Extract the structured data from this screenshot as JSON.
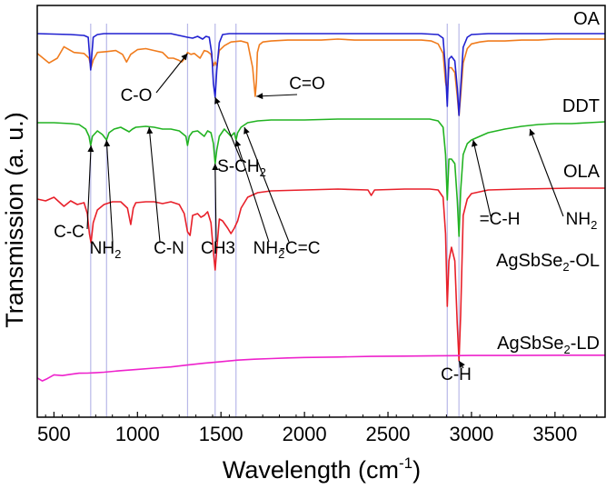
{
  "chart_data": {
    "type": "line",
    "xlabel": "Wavelength (cm",
    "xlabel_sup": "-1",
    "xlabel_close": ")",
    "ylabel": "Transmission (a. u.)",
    "xlim": [
      400,
      3800
    ],
    "x_ticks": [
      500,
      1000,
      1500,
      2000,
      2500,
      3000,
      3500
    ],
    "y_ticks": "none",
    "grid": false,
    "legend": "per-series labels on right side",
    "vertical_reference_lines": [
      720,
      815,
      1300,
      1465,
      1590,
      2855,
      2925
    ],
    "vertical_line_color": "#b8b8e8",
    "series": [
      {
        "name": "OA",
        "color": "#f07c1e",
        "x": [
          400,
          470,
          520,
          560,
          620,
          680,
          710,
          722,
          735,
          760,
          820,
          870,
          910,
          935,
          960,
          1000,
          1050,
          1100,
          1150,
          1185,
          1215,
          1245,
          1265,
          1285,
          1300,
          1320,
          1340,
          1375,
          1400,
          1420,
          1440,
          1455,
          1465,
          1475,
          1490,
          1520,
          1560,
          1620,
          1660,
          1690,
          1705,
          1712,
          1718,
          1730,
          1750,
          1800,
          1900,
          2000,
          2100,
          2200,
          2300,
          2400,
          2500,
          2600,
          2700,
          2760,
          2800,
          2830,
          2845,
          2855,
          2865,
          2880,
          2900,
          2915,
          2925,
          2935,
          2950,
          2975,
          3000,
          3050,
          3100,
          3200,
          3300,
          3400,
          3500,
          3600,
          3700,
          3800
        ],
        "y": [
          0.85,
          0.75,
          0.8,
          0.92,
          0.86,
          0.85,
          0.8,
          0.7,
          0.78,
          0.86,
          0.87,
          0.88,
          0.84,
          0.76,
          0.84,
          0.89,
          0.9,
          0.88,
          0.86,
          0.8,
          0.8,
          0.78,
          0.76,
          0.8,
          0.86,
          0.84,
          0.85,
          0.8,
          0.88,
          0.87,
          0.84,
          0.72,
          0.76,
          0.72,
          0.88,
          0.93,
          0.97,
          0.98,
          0.96,
          0.7,
          0.4,
          0.55,
          0.86,
          0.94,
          0.97,
          0.98,
          0.99,
          0.99,
          0.99,
          1.0,
          0.99,
          0.99,
          0.99,
          0.99,
          0.99,
          0.98,
          0.95,
          0.85,
          0.55,
          0.45,
          0.7,
          0.7,
          0.65,
          0.4,
          0.2,
          0.4,
          0.75,
          0.9,
          0.95,
          0.97,
          0.98,
          0.98,
          0.99,
          0.99,
          1.0,
          1.0,
          1.0,
          1.0
        ]
      },
      {
        "name": "DDT",
        "color": "#2020d0",
        "x": [
          400,
          600,
          680,
          705,
          720,
          735,
          760,
          800,
          1000,
          1200,
          1300,
          1330,
          1360,
          1390,
          1410,
          1430,
          1445,
          1455,
          1465,
          1475,
          1490,
          1510,
          1550,
          1700,
          2000,
          2400,
          2700,
          2800,
          2830,
          2845,
          2855,
          2865,
          2880,
          2900,
          2915,
          2925,
          2935,
          2950,
          2975,
          3000,
          3100,
          3300,
          3600,
          3800
        ],
        "y": [
          1.0,
          0.99,
          0.98,
          0.96,
          0.6,
          0.96,
          0.99,
          1.0,
          1.0,
          1.0,
          0.96,
          0.95,
          0.97,
          0.94,
          0.97,
          0.96,
          0.78,
          0.45,
          0.3,
          0.6,
          0.9,
          0.99,
          1.0,
          1.0,
          1.0,
          1.0,
          1.0,
          0.99,
          0.95,
          0.6,
          0.2,
          0.72,
          0.75,
          0.7,
          0.4,
          0.1,
          0.4,
          0.85,
          0.96,
          0.99,
          1.0,
          1.0,
          1.0,
          1.0
        ]
      },
      {
        "name": "OLA",
        "color": "#22b322",
        "x": [
          400,
          500,
          600,
          650,
          690,
          710,
          720,
          730,
          760,
          790,
          815,
          830,
          860,
          900,
          950,
          970,
          990,
          1050,
          1100,
          1150,
          1200,
          1250,
          1290,
          1300,
          1310,
          1330,
          1360,
          1400,
          1420,
          1440,
          1455,
          1465,
          1475,
          1490,
          1520,
          1560,
          1580,
          1590,
          1600,
          1620,
          1660,
          1720,
          1800,
          2000,
          2200,
          2400,
          2600,
          2750,
          2800,
          2830,
          2845,
          2855,
          2865,
          2880,
          2900,
          2915,
          2925,
          2935,
          2950,
          2975,
          3000,
          3050,
          3100,
          3200,
          3300,
          3400,
          3500,
          3600,
          3700,
          3800
        ],
        "y": [
          0.95,
          0.95,
          0.94,
          0.93,
          0.88,
          0.8,
          0.7,
          0.8,
          0.86,
          0.82,
          0.76,
          0.84,
          0.88,
          0.9,
          0.85,
          0.88,
          0.9,
          0.91,
          0.9,
          0.88,
          0.88,
          0.86,
          0.8,
          0.7,
          0.8,
          0.85,
          0.86,
          0.8,
          0.86,
          0.84,
          0.72,
          0.5,
          0.65,
          0.8,
          0.88,
          0.8,
          0.84,
          0.76,
          0.84,
          0.9,
          0.95,
          0.97,
          0.98,
          0.98,
          0.99,
          0.99,
          0.99,
          0.99,
          0.97,
          0.9,
          0.6,
          0.1,
          0.55,
          0.55,
          0.5,
          0.1,
          -0.3,
          0.2,
          0.6,
          0.72,
          0.76,
          0.8,
          0.84,
          0.88,
          0.91,
          0.93,
          0.94,
          0.94,
          0.95,
          0.96
        ]
      },
      {
        "name": "AgSbSe₂-OL",
        "color": "#e8202a",
        "x": [
          400,
          450,
          500,
          560,
          600,
          640,
          680,
          700,
          712,
          722,
          735,
          760,
          800,
          850,
          900,
          940,
          960,
          975,
          990,
          1050,
          1100,
          1150,
          1200,
          1250,
          1280,
          1300,
          1315,
          1330,
          1360,
          1380,
          1400,
          1420,
          1440,
          1455,
          1465,
          1478,
          1490,
          1510,
          1540,
          1560,
          1580,
          1600,
          1620,
          1660,
          1720,
          1800,
          2000,
          2200,
          2380,
          2400,
          2420,
          2600,
          2750,
          2800,
          2830,
          2845,
          2855,
          2865,
          2880,
          2900,
          2915,
          2925,
          2935,
          2950,
          2975,
          3000,
          3100,
          3300,
          3600,
          3800
        ],
        "y": [
          0.88,
          0.86,
          0.9,
          0.8,
          0.86,
          0.82,
          0.84,
          0.72,
          0.5,
          0.4,
          0.62,
          0.76,
          0.82,
          0.85,
          0.85,
          0.78,
          0.6,
          0.78,
          0.84,
          0.85,
          0.85,
          0.83,
          0.85,
          0.82,
          0.72,
          0.52,
          0.48,
          0.7,
          0.72,
          0.68,
          0.7,
          0.74,
          0.62,
          0.3,
          0.1,
          0.4,
          0.66,
          0.64,
          0.56,
          0.5,
          0.56,
          0.64,
          0.78,
          0.9,
          0.95,
          0.97,
          0.98,
          0.99,
          0.98,
          0.92,
          0.98,
          0.99,
          0.99,
          0.98,
          0.9,
          0.5,
          -0.3,
          0.2,
          0.35,
          0.2,
          -0.5,
          -0.9,
          -0.4,
          0.7,
          0.88,
          0.94,
          0.98,
          0.99,
          1.0,
          1.0
        ]
      },
      {
        "name": "AgSbSe₂-LD",
        "color": "#ee22cc",
        "x": [
          400,
          430,
          460,
          500,
          550,
          600,
          650,
          700,
          750,
          800,
          900,
          1000,
          1100,
          1200,
          1300,
          1400,
          1500,
          1600,
          1700,
          1800,
          1900,
          2000,
          2200,
          2400,
          2600,
          2800,
          2900,
          3000,
          3200,
          3400,
          3600,
          3800
        ],
        "y": [
          0.25,
          0.05,
          0.2,
          0.45,
          0.4,
          0.48,
          0.55,
          0.56,
          0.58,
          0.62,
          0.72,
          0.8,
          0.88,
          0.96,
          1.08,
          1.2,
          1.3,
          1.4,
          1.46,
          1.5,
          1.54,
          1.57,
          1.6,
          1.64,
          1.66,
          1.68,
          1.69,
          1.7,
          1.7,
          1.71,
          1.72,
          1.72
        ]
      }
    ],
    "annotations": [
      {
        "text": "C-O",
        "x": 1300,
        "series": "OA",
        "y": 0.85
      },
      {
        "text": "C=O",
        "x": 1712,
        "series": "OA",
        "y": 0.4
      },
      {
        "text": "S-CH",
        "sub": "2",
        "x": 1465,
        "series": "DDT",
        "y": 0.3
      },
      {
        "text": "C-C",
        "x": 722,
        "series": "OLA",
        "y": 0.7
      },
      {
        "text": "NH",
        "sub": "2",
        "x": 815,
        "series": "OLA",
        "y": 0.76
      },
      {
        "text": "C-N",
        "x": 1070,
        "series": "OLA",
        "y": 0.9
      },
      {
        "text": "CH3",
        "x": 1465,
        "series": "OLA",
        "y": 0.5
      },
      {
        "text": "NH",
        "sub": "2",
        "x": 1590,
        "series": "OLA",
        "y": 0.76
      },
      {
        "text": "-C=C",
        "x": 1640,
        "series": "OLA",
        "y": 0.9
      },
      {
        "text": "=C-H",
        "x": 3010,
        "series": "OLA",
        "y": 0.76
      },
      {
        "text": "NH",
        "sub": "2",
        "x": 3350,
        "series": "OLA",
        "y": 0.88
      },
      {
        "text": "C-H",
        "x": 2925,
        "series": "AgSbSe₂-OL",
        "y": -0.9
      }
    ]
  }
}
